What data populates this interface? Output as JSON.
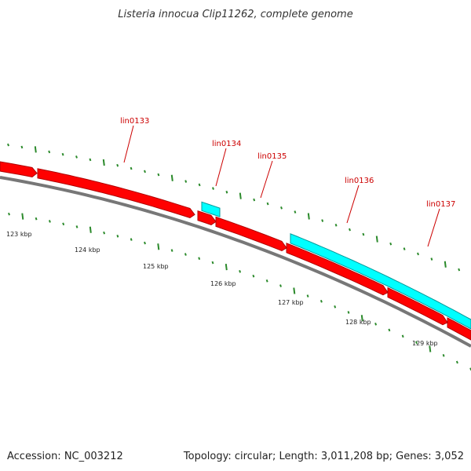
{
  "title": "Listeria innocua Clip11262, complete genome",
  "footer": {
    "accession": "Accession: NC_003212",
    "summary": "Topology: circular; Length: 3,011,208 bp; Genes: 3,052"
  },
  "colors": {
    "forward_gene": "#ff0000",
    "forward_gene_edge": "#b00000",
    "reverse_gene": "#00ffff",
    "reverse_gene_edge": "#009999",
    "backbone": "#777777",
    "tick": "#2b8a2b",
    "label": "#cc0000"
  },
  "gene_labels": [
    {
      "id": "g133",
      "text": "lin0133"
    },
    {
      "id": "g134",
      "text": "lin0134"
    },
    {
      "id": "g135",
      "text": "lin0135"
    },
    {
      "id": "g136",
      "text": "lin0136"
    },
    {
      "id": "g137",
      "text": "lin0137"
    }
  ],
  "scale_labels": [
    "123 kbp",
    "124 kbp",
    "125 kbp",
    "126 kbp",
    "127 kbp",
    "128 kbp",
    "129 kbp"
  ]
}
